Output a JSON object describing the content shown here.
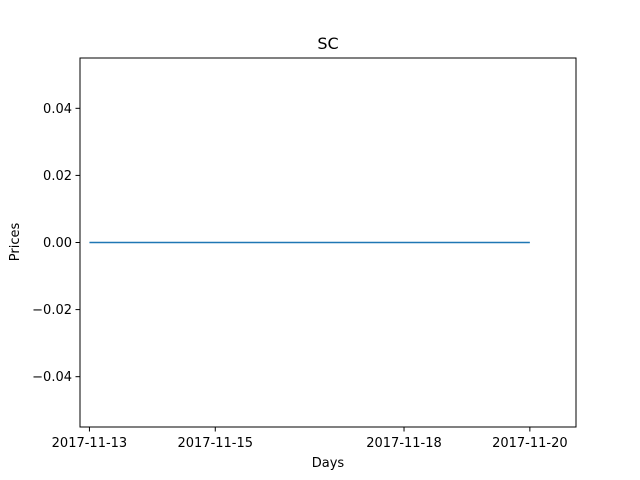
{
  "chart_data": {
    "type": "line",
    "title": "SC",
    "xlabel": "Days",
    "ylabel": "Prices",
    "x": [
      "2017-11-13",
      "2017-11-14",
      "2017-11-15",
      "2017-11-16",
      "2017-11-17",
      "2017-11-18",
      "2017-11-19",
      "2017-11-20"
    ],
    "series": [
      {
        "values": [
          0,
          0,
          0,
          0,
          0,
          0,
          0,
          0
        ],
        "color": "#1f77b4"
      }
    ],
    "xlim": [
      "2017-11-12T20:24",
      "2017-11-20T17:36"
    ],
    "ylim": [
      -0.055,
      0.055
    ],
    "x_ticks": [
      "2017-11-13",
      "2017-11-15",
      "2017-11-18",
      "2017-11-20"
    ],
    "y_ticks": [
      -0.04,
      -0.02,
      0.0,
      0.02,
      0.04
    ],
    "y_tick_labels": [
      "−0.04",
      "−0.02",
      "0.00",
      "0.02",
      "0.04"
    ],
    "grid": false,
    "legend": "none"
  }
}
